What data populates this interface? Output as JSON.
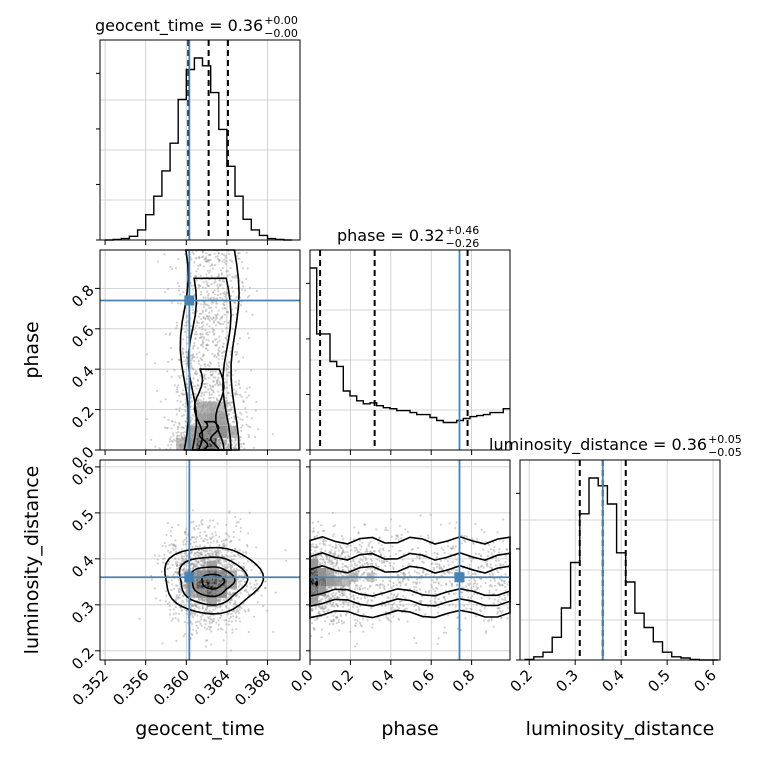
{
  "chart_data": {
    "type": "corner",
    "parameters": [
      "geocent_time",
      "phase",
      "luminosity_distance"
    ],
    "ranges": {
      "geocent_time": [
        0.3515,
        0.3712
      ],
      "phase": [
        0.0,
        0.99
      ],
      "luminosity_distance": [
        0.18,
        0.615
      ]
    },
    "ticks": {
      "geocent_time": [
        0.352,
        0.356,
        0.36,
        0.364,
        0.368
      ],
      "phase": [
        0.0,
        0.2,
        0.4,
        0.6,
        0.8
      ],
      "luminosity_distance": [
        0.2,
        0.3,
        0.4,
        0.5,
        0.6
      ]
    },
    "tick_labels": {
      "geocent_time": [
        "0.352",
        "0.356",
        "0.360",
        "0.364",
        "0.368"
      ],
      "phase": [
        "0.0",
        "0.2",
        "0.4",
        "0.6",
        "0.8"
      ],
      "luminosity_distance": [
        "0.2",
        "0.3",
        "0.4",
        "0.5",
        "0.6"
      ]
    },
    "truths": {
      "geocent_time": 0.3603,
      "phase": 0.74,
      "luminosity_distance": 0.36
    },
    "truth_color": "#4682b4",
    "titles": [
      {
        "param": "geocent_time",
        "text": "geocent_time = 0.36",
        "plus": "+0.00",
        "minus": "−0.00"
      },
      {
        "param": "phase",
        "text": "phase = 0.32",
        "plus": "+0.46",
        "minus": "−0.26"
      },
      {
        "param": "luminosity_distance",
        "text": "luminosity_distance = 0.36",
        "plus": "+0.05",
        "minus": "−0.05"
      }
    ],
    "quantiles": {
      "geocent_time": [
        0.3602,
        0.3622,
        0.3641
      ],
      "phase": [
        0.05,
        0.32,
        0.78
      ],
      "luminosity_distance": [
        0.31,
        0.36,
        0.41
      ]
    },
    "histograms": {
      "geocent_time": {
        "edges": [
          0.352,
          0.3528,
          0.3536,
          0.3544,
          0.3552,
          0.356,
          0.3568,
          0.3576,
          0.3584,
          0.3592,
          0.36,
          0.3608,
          0.3616,
          0.3624,
          0.3632,
          0.364,
          0.3648,
          0.3656,
          0.3664,
          0.3672,
          0.368,
          0.3688,
          0.3696,
          0.3704
        ],
        "counts": [
          0,
          1,
          3,
          8,
          22,
          55,
          95,
          150,
          210,
          305,
          370,
          395,
          378,
          320,
          240,
          160,
          95,
          45,
          22,
          10,
          3,
          1,
          0
        ]
      },
      "phase": {
        "edges": [
          0.0,
          0.033,
          0.066,
          0.099,
          0.132,
          0.165,
          0.198,
          0.231,
          0.264,
          0.297,
          0.33,
          0.363,
          0.396,
          0.429,
          0.462,
          0.495,
          0.528,
          0.561,
          0.594,
          0.627,
          0.66,
          0.693,
          0.726,
          0.759,
          0.792,
          0.825,
          0.858,
          0.891,
          0.924,
          0.957,
          0.99
        ],
        "counts": [
          185,
          118,
          118,
          90,
          85,
          60,
          55,
          50,
          47,
          48,
          45,
          43,
          42,
          40,
          40,
          38,
          36,
          36,
          33,
          30,
          28,
          28,
          30,
          32,
          34,
          35,
          36,
          38,
          38,
          42
        ]
      },
      "luminosity_distance": {
        "edges": [
          0.19,
          0.21,
          0.23,
          0.25,
          0.27,
          0.29,
          0.31,
          0.33,
          0.35,
          0.37,
          0.39,
          0.41,
          0.43,
          0.45,
          0.47,
          0.49,
          0.51,
          0.53,
          0.55,
          0.57,
          0.59,
          0.61
        ],
        "counts": [
          1,
          5,
          12,
          35,
          80,
          150,
          225,
          280,
          268,
          240,
          165,
          120,
          72,
          50,
          28,
          12,
          5,
          3,
          1,
          0,
          0
        ]
      }
    },
    "pairs": [
      {
        "x": "geocent_time",
        "y": "phase",
        "density": [
          [
            0.362,
            0.03,
            1.0
          ],
          [
            0.3625,
            0.03,
            0.85
          ],
          [
            0.3615,
            0.03,
            0.7
          ],
          [
            0.3625,
            0.09,
            0.5
          ],
          [
            0.3615,
            0.09,
            0.45
          ],
          [
            0.3605,
            0.03,
            0.35
          ],
          [
            0.3635,
            0.09,
            0.4
          ],
          [
            0.3635,
            0.15,
            0.3
          ],
          [
            0.3625,
            0.21,
            0.25
          ],
          [
            0.3615,
            0.15,
            0.3
          ],
          [
            0.3605,
            0.09,
            0.25
          ],
          [
            0.3625,
            0.15,
            0.35
          ],
          [
            0.3615,
            0.21,
            0.22
          ],
          [
            0.3635,
            0.21,
            0.2
          ],
          [
            0.3645,
            0.09,
            0.22
          ],
          [
            0.3595,
            0.03,
            0.18
          ]
        ]
      },
      {
        "x": "geocent_time",
        "y": "luminosity_distance",
        "density": [
          [
            0.3625,
            0.345,
            1.0
          ],
          [
            0.3615,
            0.345,
            0.75
          ],
          [
            0.3635,
            0.345,
            0.7
          ],
          [
            0.3625,
            0.365,
            0.65
          ],
          [
            0.3625,
            0.325,
            0.6
          ],
          [
            0.3615,
            0.365,
            0.45
          ],
          [
            0.3635,
            0.365,
            0.45
          ],
          [
            0.3615,
            0.325,
            0.4
          ],
          [
            0.3635,
            0.325,
            0.4
          ],
          [
            0.3605,
            0.345,
            0.35
          ],
          [
            0.3645,
            0.345,
            0.3
          ],
          [
            0.3625,
            0.385,
            0.3
          ],
          [
            0.3625,
            0.305,
            0.28
          ],
          [
            0.3605,
            0.365,
            0.25
          ],
          [
            0.3645,
            0.365,
            0.22
          ],
          [
            0.3605,
            0.325,
            0.22
          ]
        ]
      },
      {
        "x": "phase",
        "y": "luminosity_distance",
        "density": [
          [
            0.02,
            0.35,
            1.0
          ],
          [
            0.02,
            0.37,
            0.7
          ],
          [
            0.02,
            0.33,
            0.6
          ],
          [
            0.06,
            0.35,
            0.55
          ],
          [
            0.06,
            0.37,
            0.4
          ],
          [
            0.06,
            0.33,
            0.35
          ],
          [
            0.1,
            0.35,
            0.35
          ],
          [
            0.02,
            0.39,
            0.35
          ],
          [
            0.02,
            0.31,
            0.3
          ],
          [
            0.14,
            0.35,
            0.28
          ],
          [
            0.1,
            0.37,
            0.22
          ],
          [
            0.18,
            0.35,
            0.2
          ],
          [
            0.22,
            0.36,
            0.18
          ],
          [
            0.3,
            0.36,
            0.16
          ]
        ]
      }
    ]
  }
}
